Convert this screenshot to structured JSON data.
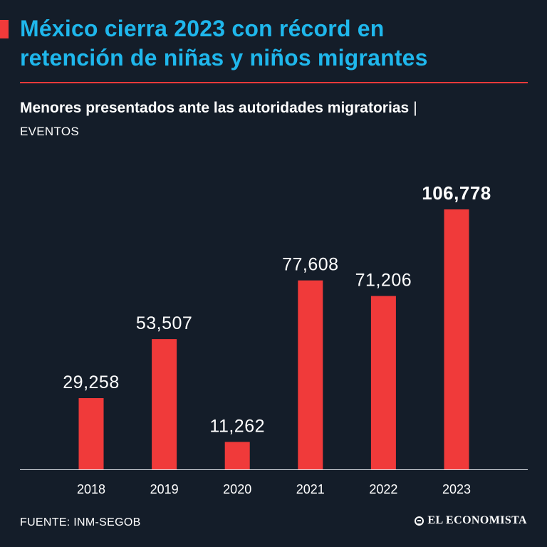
{
  "header": {
    "title_line1": "México cierra 2023 con récord en",
    "title_line2": "retención de niñas y niños migrantes",
    "subtitle": "Menores presentados ante las autoridades migratorias",
    "subtitle_separator": "|",
    "unit": "EVENTOS"
  },
  "colors": {
    "background": "#141d29",
    "title": "#1fb7ec",
    "bar": "#f03a3a",
    "text": "#ffffff"
  },
  "chart_data": {
    "type": "bar",
    "title": "Menores presentados ante las autoridades migratorias",
    "ylabel": "EVENTOS",
    "xlabel": "",
    "categories": [
      "2018",
      "2019",
      "2020",
      "2021",
      "2022",
      "2023"
    ],
    "values": [
      29258,
      53507,
      11262,
      77608,
      71206,
      106778
    ],
    "value_labels": [
      "29,258",
      "53,507",
      "11,262",
      "77,608",
      "71,206",
      "106,778"
    ],
    "highlight_index": 5,
    "ylim": [
      0,
      125000
    ],
    "grid": false
  },
  "footer": {
    "source": "FUENTE: INM-SEGOB",
    "brand": "EL ECONOMISTA",
    "brand_icon": "globe-icon"
  }
}
